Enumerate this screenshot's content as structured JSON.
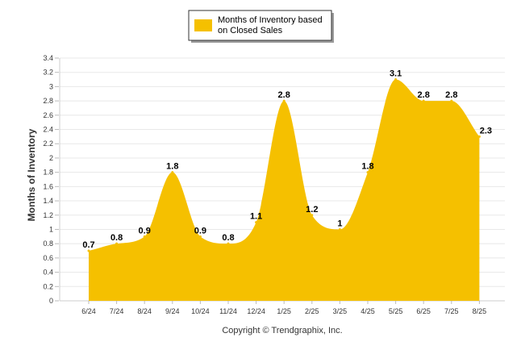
{
  "chart_data": {
    "type": "area",
    "categories": [
      "6/24",
      "7/24",
      "8/24",
      "9/24",
      "10/24",
      "11/24",
      "12/24",
      "1/25",
      "2/25",
      "3/25",
      "4/25",
      "5/25",
      "6/25",
      "7/25",
      "8/25"
    ],
    "series": [
      {
        "name": "Months of Inventory based on Closed Sales",
        "values": [
          0.7,
          0.8,
          0.9,
          1.8,
          0.9,
          0.8,
          1.1,
          2.8,
          1.2,
          1,
          1.8,
          3.1,
          2.8,
          2.8,
          2.3
        ],
        "color": "#F5C000"
      }
    ],
    "ylabel": "Months of Inventory",
    "xlabel": "",
    "ylim": [
      0,
      3.4
    ],
    "yticks": [
      "0",
      "0.2",
      "0.4",
      "0.6",
      "0.8",
      "1",
      "1.2",
      "1.4",
      "1.6",
      "1.8",
      "2",
      "2.2",
      "2.4",
      "2.6",
      "2.8",
      "3",
      "3.2",
      "3.4"
    ],
    "grid": true,
    "legend_position": "top-center"
  },
  "legend": {
    "line1": "Months of Inventory based",
    "line2": "on Closed Sales"
  },
  "copyright": "Copyright © Trendgraphix, Inc."
}
